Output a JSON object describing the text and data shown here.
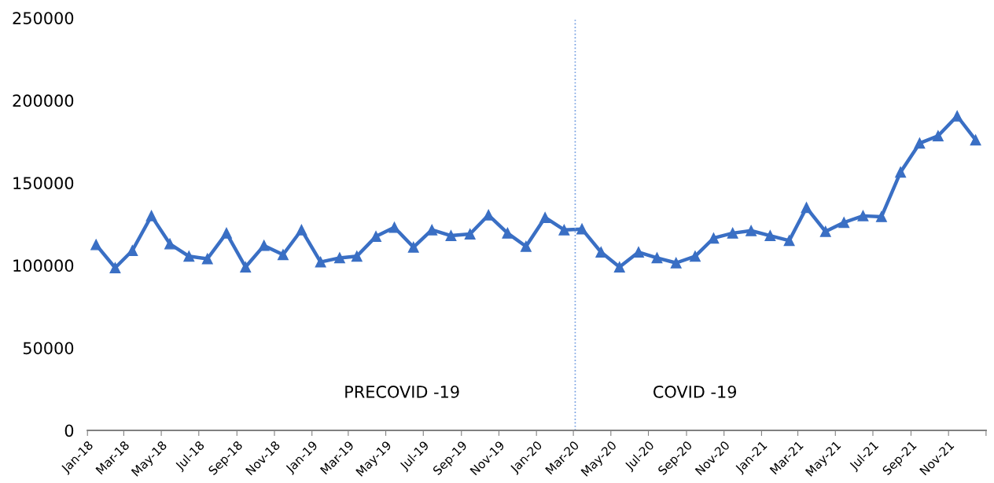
{
  "chart_data": {
    "type": "line",
    "x": [
      "2018-01-15",
      "2018-02-15",
      "2018-03-15",
      "2018-04-15",
      "2018-05-15",
      "2018-06-15",
      "2018-07-15",
      "2018-08-15",
      "2018-09-15",
      "2018-10-15",
      "2018-11-15",
      "2018-12-15",
      "2019-01-15",
      "2019-02-15",
      "2019-03-15",
      "2019-04-15",
      "2019-05-15",
      "2019-06-15",
      "2019-07-15",
      "2019-08-15",
      "2019-09-15",
      "2019-10-15",
      "2019-11-15",
      "2019-12-15",
      "2020-01-15",
      "2020-02-15",
      "2020-03-15",
      "2020-04-15",
      "2020-05-15",
      "2020-06-15",
      "2020-07-15",
      "2020-08-15",
      "2020-09-15",
      "2020-10-15",
      "2020-11-15",
      "2020-12-15",
      "2021-01-15",
      "2021-02-15",
      "2021-03-15",
      "2021-04-15",
      "2021-05-15",
      "2021-06-15",
      "2021-07-15",
      "2021-08-15",
      "2021-09-15",
      "2021-10-15",
      "2021-11-15",
      "2021-12-15"
    ],
    "series": [
      {
        "color": "#3a6fc4",
        "values": [
          112500,
          98500,
          109000,
          130000,
          113000,
          105500,
          104000,
          119500,
          99000,
          112000,
          106500,
          121500,
          102000,
          104500,
          105500,
          117500,
          123000,
          111000,
          121500,
          118000,
          119000,
          130500,
          119500,
          111500,
          129000,
          121500,
          122000,
          108000,
          99000,
          108000,
          104500,
          101500,
          105500,
          116500,
          119500,
          121000,
          118000,
          115000,
          135000,
          120500,
          126000,
          130000,
          129500,
          156500,
          174000,
          178500,
          190500,
          176000
        ]
      }
    ],
    "xlim": [
      "2018-01-01",
      "2022-01-01"
    ],
    "xticks": [
      {
        "value": "2018-01-01",
        "label": "Jan-18"
      },
      {
        "value": "2018-03-01",
        "label": "Mar-18"
      },
      {
        "value": "2018-05-01",
        "label": "May-18"
      },
      {
        "value": "2018-07-01",
        "label": "Jul-18"
      },
      {
        "value": "2018-09-01",
        "label": "Sep-18"
      },
      {
        "value": "2018-11-01",
        "label": "Nov-18"
      },
      {
        "value": "2019-01-01",
        "label": "Jan-19"
      },
      {
        "value": "2019-03-01",
        "label": "Mar-19"
      },
      {
        "value": "2019-05-01",
        "label": "May-19"
      },
      {
        "value": "2019-07-01",
        "label": "Jul-19"
      },
      {
        "value": "2019-09-01",
        "label": "Sep-19"
      },
      {
        "value": "2019-11-01",
        "label": "Nov-19"
      },
      {
        "value": "2020-01-01",
        "label": "Jan-20"
      },
      {
        "value": "2020-03-01",
        "label": "Mar-20"
      },
      {
        "value": "2020-05-01",
        "label": "May-20"
      },
      {
        "value": "2020-07-01",
        "label": "Jul-20"
      },
      {
        "value": "2020-09-01",
        "label": "Sep-20"
      },
      {
        "value": "2020-11-01",
        "label": "Nov-20"
      },
      {
        "value": "2021-01-01",
        "label": "Jan-21"
      },
      {
        "value": "2021-03-01",
        "label": "Mar-21"
      },
      {
        "value": "2021-05-01",
        "label": "May-21"
      },
      {
        "value": "2021-07-01",
        "label": "Jul-21"
      },
      {
        "value": "2021-09-01",
        "label": "Sep-21"
      },
      {
        "value": "2021-11-01",
        "label": "Nov-21"
      },
      {
        "value": "2022-01-01",
        "label": null
      }
    ],
    "ylim": [
      0,
      250000
    ],
    "yticks": [
      0,
      50000,
      100000,
      150000,
      200000,
      250000
    ],
    "marker": "triangle",
    "line_style": "solid",
    "grid": false,
    "legend": false,
    "ref_lines": [
      {
        "axis": "x",
        "value": "2020-03-04",
        "color": "#6f9be0",
        "line_style": "dotted"
      }
    ],
    "annotations": [
      "PRECOVID -19",
      "COVID -19"
    ]
  }
}
